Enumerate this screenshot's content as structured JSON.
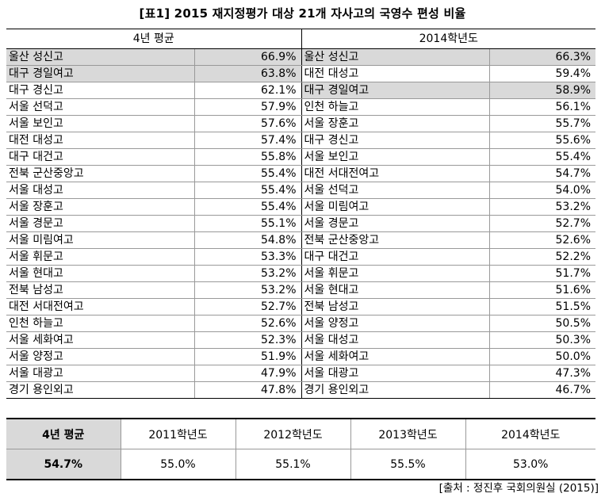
{
  "title": "[표1] 2015 재지정평가 대상 21개 자사고의 국영수 편성 비율",
  "left_header": "4년 평균",
  "right_header": "2014학년도",
  "rows": [
    {
      "l_name": "울산 성신고",
      "l_val": "66.9%",
      "r_name": "울산 성신고",
      "r_val": "66.3%"
    },
    {
      "l_name": "대구 경일여고",
      "l_val": "63.8%",
      "r_name": "대전 대성고",
      "r_val": "59.4%"
    },
    {
      "l_name": "대구 경신고",
      "l_val": "62.1%",
      "r_name": "대구 경일여고",
      "r_val": "58.9%"
    },
    {
      "l_name": "서울 선덕고",
      "l_val": "57.9%",
      "r_name": "인천 하늘고",
      "r_val": "56.1%"
    },
    {
      "l_name": "서울 보인고",
      "l_val": "57.6%",
      "r_name": "서울 장훈고",
      "r_val": "55.7%"
    },
    {
      "l_name": "대전 대성고",
      "l_val": "57.4%",
      "r_name": "대구 경신고",
      "r_val": "55.6%"
    },
    {
      "l_name": "대구 대건고",
      "l_val": "55.8%",
      "r_name": "서울 보인고",
      "r_val": "55.4%"
    },
    {
      "l_name": "전북 군산중앙고",
      "l_val": "55.4%",
      "r_name": "대전 서대전여고",
      "r_val": "54.7%"
    },
    {
      "l_name": "서울 대성고",
      "l_val": "55.4%",
      "r_name": "서울 선덕고",
      "r_val": "54.0%"
    },
    {
      "l_name": "서울 장훈고",
      "l_val": "55.4%",
      "r_name": "서울 미림여고",
      "r_val": "53.2%"
    },
    {
      "l_name": "서울 경문고",
      "l_val": "55.1%",
      "r_name": "서울 경문고",
      "r_val": "52.7%"
    },
    {
      "l_name": "서울 미림여고",
      "l_val": "54.8%",
      "r_name": "전북 군산중앙고",
      "r_val": "52.6%"
    },
    {
      "l_name": "서울 휘문고",
      "l_val": "53.3%",
      "r_name": "대구 대건고",
      "r_val": "52.2%"
    },
    {
      "l_name": "서울 현대고",
      "l_val": "53.2%",
      "r_name": "서울 휘문고",
      "r_val": "51.7%"
    },
    {
      "l_name": "전북 남성고",
      "l_val": "53.2%",
      "r_name": "서울 현대고",
      "r_val": "51.6%"
    },
    {
      "l_name": "대전 서대전여고",
      "l_val": "52.7%",
      "r_name": "전북 남성고",
      "r_val": "51.5%"
    },
    {
      "l_name": "인천 하늘고",
      "l_val": "52.6%",
      "r_name": "서울 양정고",
      "r_val": "50.5%"
    },
    {
      "l_name": "서울 세화여고",
      "l_val": "52.3%",
      "r_name": "서울 대성고",
      "r_val": "50.3%"
    },
    {
      "l_name": "서울 양정고",
      "l_val": "51.9%",
      "r_name": "서울 세화여고",
      "r_val": "50.0%"
    },
    {
      "l_name": "서울 대광고",
      "l_val": "47.9%",
      "r_name": "서울 대광고",
      "r_val": "47.3%"
    },
    {
      "l_name": "경기 용인외고",
      "l_val": "47.8%",
      "r_name": "경기 용인외고",
      "r_val": "46.7%"
    }
  ],
  "summary": {
    "label": "4년 평균",
    "label_value": "54.7%",
    "years": [
      "2011학년도",
      "2012학년도",
      "2013학년도",
      "2014학년도"
    ],
    "values": [
      "55.0%",
      "55.1%",
      "55.5%",
      "53.0%"
    ]
  },
  "source": "[출처 : 정진후 국회의원실 (2015)]"
}
